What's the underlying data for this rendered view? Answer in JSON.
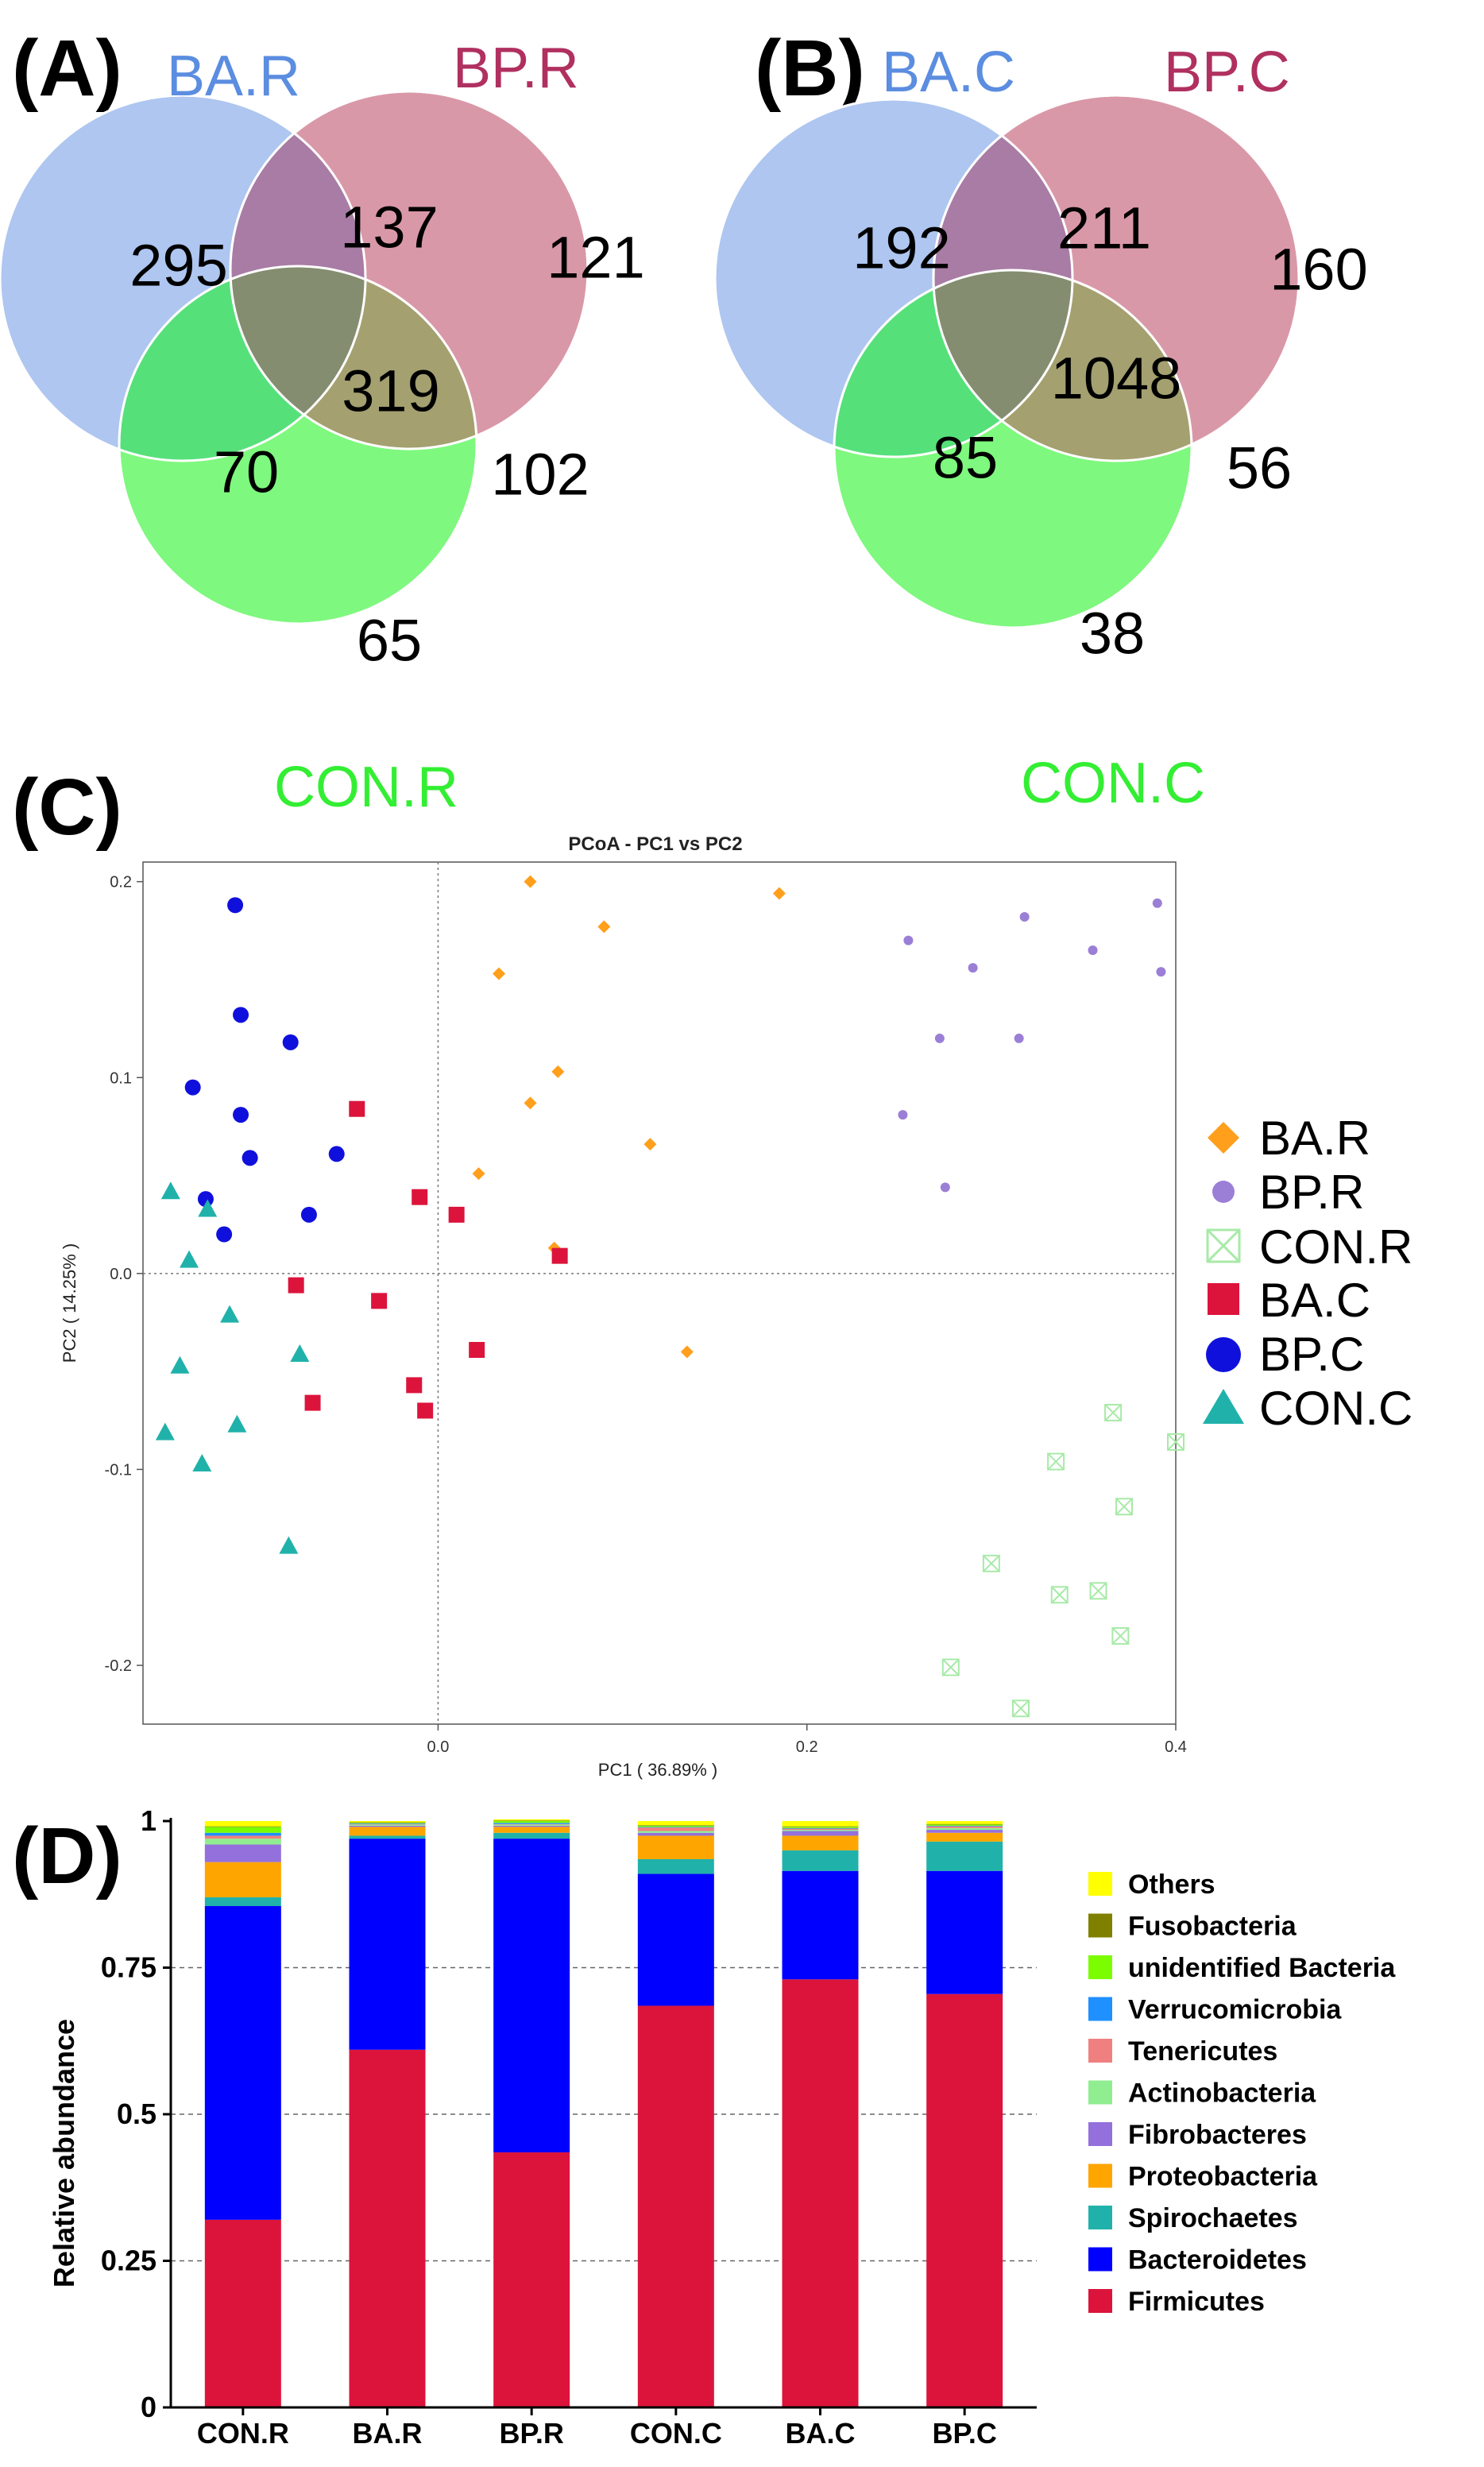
{
  "panels": {
    "A": "(A)",
    "B": "(B)",
    "C": "(C)",
    "D": "(D)"
  },
  "colors": {
    "set1": "#aec6f0",
    "set2": "#d998a8",
    "set3": "#7ef87e",
    "ba_r": "#ff9f1c",
    "bp_r": "#9b7fd6",
    "con_r": "#a8eaa8",
    "ba_c": "#dc143c",
    "bp_c": "#1010dd",
    "con_c": "#20b2aa"
  },
  "chart_data": [
    {
      "type": "venn",
      "panel": "A",
      "sets": [
        {
          "name": "BA.R",
          "color": "#5b8de0"
        },
        {
          "name": "BP.R",
          "color": "#b03060"
        },
        {
          "name": "CON.R",
          "color": "#33ee33"
        }
      ],
      "regions": {
        "a_only": "295",
        "b_only": "121",
        "c_only": "65",
        "ab": "137",
        "ac": "70",
        "bc": "102",
        "abc": "319"
      }
    },
    {
      "type": "venn",
      "panel": "B",
      "sets": [
        {
          "name": "BA.C",
          "color": "#5b8de0"
        },
        {
          "name": "BP.C",
          "color": "#b03060"
        },
        {
          "name": "CON.C",
          "color": "#33ee33"
        }
      ],
      "regions": {
        "a_only": "192",
        "b_only": "160",
        "c_only": "38",
        "ab": "211",
        "ac": "85",
        "bc": "56",
        "abc": "1048"
      }
    },
    {
      "type": "scatter",
      "panel": "C",
      "title": "PCoA - PC1 vs PC2",
      "xlabel": "PC1 ( 36.89% )",
      "ylabel": "PC2 ( 14.25% )",
      "xlim": [
        -0.16,
        0.4
      ],
      "ylim": [
        -0.23,
        0.21
      ],
      "xticks": [
        {
          "v": 0.0,
          "label": "0.0"
        },
        {
          "v": 0.2,
          "label": "0.2"
        },
        {
          "v": 0.4,
          "label": "0.4"
        }
      ],
      "yticks": [
        {
          "v": 0.2,
          "label": "0.2"
        },
        {
          "v": 0.1,
          "label": "0.1"
        },
        {
          "v": 0.0,
          "label": "0.0"
        },
        {
          "v": -0.1,
          "label": "-0.1"
        },
        {
          "v": -0.2,
          "label": "-0.2"
        }
      ],
      "series": [
        {
          "name": "BA.R",
          "marker": "diamond",
          "color": "#ff9f1c",
          "points": [
            [
              0.05,
              0.2
            ],
            [
              0.09,
              0.177
            ],
            [
              0.185,
              0.194
            ],
            [
              0.033,
              0.153
            ],
            [
              0.065,
              0.103
            ],
            [
              0.05,
              0.087
            ],
            [
              0.115,
              0.066
            ],
            [
              0.022,
              0.051
            ],
            [
              0.063,
              0.013
            ],
            [
              0.135,
              -0.04
            ]
          ]
        },
        {
          "name": "BP.R",
          "marker": "dot",
          "color": "#9b7fd6",
          "points": [
            [
              0.255,
              0.17
            ],
            [
              0.318,
              0.182
            ],
            [
              0.39,
              0.189
            ],
            [
              0.29,
              0.156
            ],
            [
              0.355,
              0.165
            ],
            [
              0.392,
              0.154
            ],
            [
              0.272,
              0.12
            ],
            [
              0.315,
              0.12
            ],
            [
              0.252,
              0.081
            ],
            [
              0.275,
              0.044
            ]
          ]
        },
        {
          "name": "CON.R",
          "marker": "xbox",
          "color": "#a8eaa8",
          "points": [
            [
              0.4,
              -0.086
            ],
            [
              0.366,
              -0.071
            ],
            [
              0.335,
              -0.096
            ],
            [
              0.372,
              -0.119
            ],
            [
              0.3,
              -0.148
            ],
            [
              0.337,
              -0.164
            ],
            [
              0.358,
              -0.162
            ],
            [
              0.37,
              -0.185
            ],
            [
              0.278,
              -0.201
            ],
            [
              0.316,
              -0.222
            ]
          ]
        },
        {
          "name": "BA.C",
          "marker": "square",
          "color": "#dc143c",
          "points": [
            [
              -0.044,
              0.084
            ],
            [
              -0.01,
              0.039
            ],
            [
              0.01,
              0.03
            ],
            [
              0.066,
              0.009
            ],
            [
              -0.077,
              -0.006
            ],
            [
              -0.032,
              -0.014
            ],
            [
              0.021,
              -0.039
            ],
            [
              -0.013,
              -0.057
            ],
            [
              -0.007,
              -0.07
            ],
            [
              -0.068,
              -0.066
            ]
          ]
        },
        {
          "name": "BP.C",
          "marker": "circle",
          "color": "#1010dd",
          "points": [
            [
              -0.11,
              0.188
            ],
            [
              -0.107,
              0.132
            ],
            [
              -0.08,
              0.118
            ],
            [
              -0.133,
              0.095
            ],
            [
              -0.107,
              0.081
            ],
            [
              -0.102,
              0.059
            ],
            [
              -0.055,
              0.061
            ],
            [
              -0.07,
              0.03
            ],
            [
              -0.126,
              0.038
            ],
            [
              -0.116,
              0.02
            ]
          ]
        },
        {
          "name": "CON.C",
          "marker": "triangle",
          "color": "#20b2aa",
          "points": [
            [
              -0.145,
              0.042
            ],
            [
              -0.125,
              0.033
            ],
            [
              -0.135,
              0.007
            ],
            [
              -0.113,
              -0.021
            ],
            [
              -0.075,
              -0.041
            ],
            [
              -0.14,
              -0.047
            ],
            [
              -0.109,
              -0.077
            ],
            [
              -0.148,
              -0.081
            ],
            [
              -0.128,
              -0.097
            ],
            [
              -0.081,
              -0.139
            ]
          ]
        }
      ]
    },
    {
      "type": "bar",
      "stacked": true,
      "panel": "D",
      "ylabel": "Relative abundance",
      "ylim": [
        0,
        1
      ],
      "yticks": [
        {
          "v": 0,
          "label": "0"
        },
        {
          "v": 0.25,
          "label": "0.25"
        },
        {
          "v": 0.5,
          "label": "0.5"
        },
        {
          "v": 0.75,
          "label": "0.75"
        },
        {
          "v": 1,
          "label": "1"
        }
      ],
      "categories": [
        "CON.R",
        "BA.R",
        "BP.R",
        "CON.C",
        "BA.C",
        "BP.C"
      ],
      "series": [
        {
          "name": "Firmicutes",
          "color": "#dc143c",
          "values": [
            0.32,
            0.61,
            0.435,
            0.685,
            0.73,
            0.705
          ]
        },
        {
          "name": "Bacteroidetes",
          "color": "#0000ff",
          "values": [
            0.535,
            0.36,
            0.535,
            0.225,
            0.185,
            0.21
          ]
        },
        {
          "name": "Spirochaetes",
          "color": "#20b2aa",
          "values": [
            0.015,
            0.005,
            0.01,
            0.025,
            0.035,
            0.05
          ]
        },
        {
          "name": "Proteobacteria",
          "color": "#ffa500",
          "values": [
            0.06,
            0.015,
            0.01,
            0.04,
            0.025,
            0.015
          ]
        },
        {
          "name": "Fibrobacteres",
          "color": "#9370db",
          "values": [
            0.03,
            0.002,
            0.002,
            0.005,
            0.008,
            0.005
          ]
        },
        {
          "name": "Actinobacteria",
          "color": "#90ee90",
          "values": [
            0.01,
            0.002,
            0.002,
            0.003,
            0.002,
            0.003
          ]
        },
        {
          "name": "Tenericutes",
          "color": "#f08080",
          "values": [
            0.005,
            0.001,
            0.001,
            0.006,
            0.002,
            0.003
          ]
        },
        {
          "name": "Verrucomicrobia",
          "color": "#1e90ff",
          "values": [
            0.005,
            0.001,
            0.002,
            0.001,
            0.001,
            0.001
          ]
        },
        {
          "name": "unidentified Bacteria",
          "color": "#7cfc00",
          "values": [
            0.01,
            0.001,
            0.003,
            0.002,
            0.002,
            0.002
          ]
        },
        {
          "name": "Fusobacteria",
          "color": "#808000",
          "values": [
            0.001,
            0.001,
            0.001,
            0.001,
            0.001,
            0.001
          ]
        },
        {
          "name": "Others",
          "color": "#ffff00",
          "values": [
            0.009,
            0.002,
            0.002,
            0.007,
            0.009,
            0.005
          ]
        }
      ],
      "legend_order": [
        "Others",
        "Fusobacteria",
        "unidentified Bacteria",
        "Verrucomicrobia",
        "Tenericutes",
        "Actinobacteria",
        "Fibrobacteres",
        "Proteobacteria",
        "Spirochaetes",
        "Bacteroidetes",
        "Firmicutes"
      ]
    }
  ]
}
